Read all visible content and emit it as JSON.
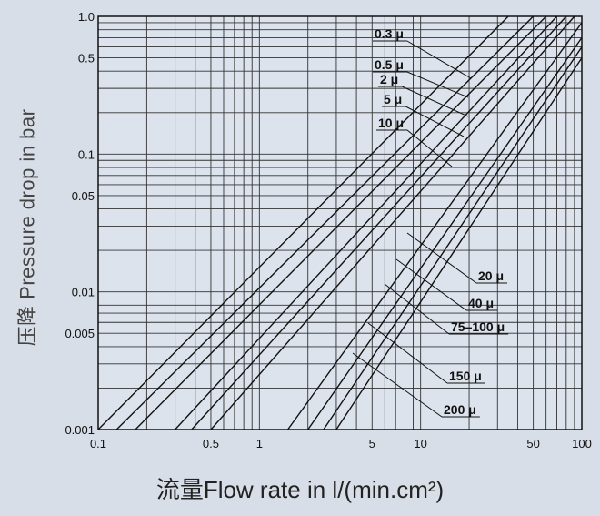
{
  "chart_data": {
    "type": "line",
    "x_scale": "log",
    "y_scale": "log",
    "xlim": [
      0.1,
      100
    ],
    "ylim": [
      0.001,
      1.0
    ],
    "xlabel": "流量Flow rate in l/(min.cm²)",
    "ylabel": "压降 Pressure drop in bar",
    "x_ticks": [
      {
        "value": 0.1,
        "label": "0.1"
      },
      {
        "value": 0.5,
        "label": "0.5"
      },
      {
        "value": 1,
        "label": "1"
      },
      {
        "value": 5,
        "label": "5"
      },
      {
        "value": 10,
        "label": "10"
      },
      {
        "value": 50,
        "label": "50"
      },
      {
        "value": 100,
        "label": "100"
      }
    ],
    "y_ticks": [
      {
        "value": 0.001,
        "label": "0.001"
      },
      {
        "value": 0.005,
        "label": "0.005"
      },
      {
        "value": 0.01,
        "label": "0.01"
      },
      {
        "value": 0.05,
        "label": "0.05"
      },
      {
        "value": 0.1,
        "label": "0.1"
      },
      {
        "value": 0.5,
        "label": "0.5"
      },
      {
        "value": 1.0,
        "label": "1.0"
      }
    ],
    "grid": true,
    "series": [
      {
        "name": "0.3 μ",
        "points": [
          [
            0.1,
            0.001
          ],
          [
            35,
            1.0
          ]
        ]
      },
      {
        "name": "0.5 μ",
        "points": [
          [
            0.13,
            0.001
          ],
          [
            50,
            1.0
          ]
        ]
      },
      {
        "name": "2 μ",
        "points": [
          [
            0.17,
            0.001
          ],
          [
            60,
            1.0
          ]
        ]
      },
      {
        "name": "5 μ",
        "points": [
          [
            0.3,
            0.001
          ],
          [
            70,
            1.0
          ]
        ]
      },
      {
        "name": "10 μ",
        "points": [
          [
            0.38,
            0.001
          ],
          [
            80,
            1.0
          ]
        ]
      },
      {
        "name": "20 μ",
        "points": [
          [
            0.5,
            0.001
          ],
          [
            90,
            1.0
          ]
        ]
      },
      {
        "name": "40 μ",
        "points": [
          [
            1.5,
            0.001
          ],
          [
            100,
            0.9
          ]
        ]
      },
      {
        "name": "75–100 μ",
        "points": [
          [
            2.0,
            0.001
          ],
          [
            100,
            0.7
          ]
        ]
      },
      {
        "name": "150 μ",
        "points": [
          [
            2.5,
            0.001
          ],
          [
            100,
            0.6
          ]
        ]
      },
      {
        "name": "200 μ",
        "points": [
          [
            3.0,
            0.001
          ],
          [
            100,
            0.5
          ]
        ]
      }
    ]
  }
}
